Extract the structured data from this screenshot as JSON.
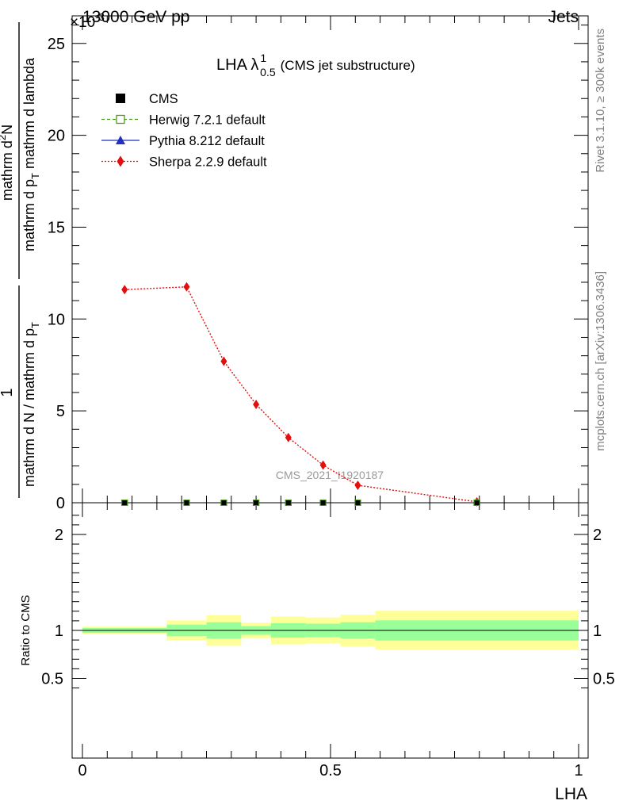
{
  "header": {
    "energy_label": "13000 GeV pp",
    "process_label": "Jets",
    "exponent_label": "×10",
    "exponent_power": "-3"
  },
  "title": {
    "main": "LHA λ",
    "sup": "1",
    "sub": "0.5",
    "paren": "(CMS jet substructure)"
  },
  "side_labels": {
    "rivet": "Rivet 3.1.10, ≥ 300k events",
    "mcplots": "mcplots.cern.ch [arXiv:1306.3436]"
  },
  "watermark": "CMS_2021_I1920187",
  "legend": [
    {
      "name": "CMS",
      "color": "#000000",
      "marker": "square",
      "line": "none"
    },
    {
      "name": "Herwig 7.2.1 default",
      "color": "#4a9a1a",
      "marker": "open-square",
      "line": "dashed"
    },
    {
      "name": "Pythia 8.212 default",
      "color": "#1f2fbf",
      "marker": "triangle",
      "line": "solid"
    },
    {
      "name": "Sherpa 2.2.9 default",
      "color": "#e30f0f",
      "marker": "diamond",
      "line": "dotted"
    }
  ],
  "axes": {
    "ylabel_main_numerator": "1",
    "ylabel_main_denominator": "mathrm d N / mathrm d p",
    "ylabel_main_denominator_sub": "T",
    "ylabel_main_right_numerator": "mathrm d",
    "ylabel_main_right_numerator_sup": "2",
    "ylabel_main_right_numerator_tail": "N",
    "ylabel_main_right_denominator": "mathrm d p",
    "ylabel_main_right_denominator_sub": "T",
    "ylabel_main_right_denominator_tail": " mathrm d lambda",
    "ylabel_ratio": "Ratio to CMS",
    "xlabel": "LHA"
  },
  "chart_data": [
    {
      "type": "line",
      "panel": "main",
      "xlim": [
        0,
        1
      ],
      "ylim": [
        0,
        26.5
      ],
      "y_scale_factor": "1e-3",
      "yticks_major": [
        0,
        5,
        10,
        15,
        20,
        25
      ],
      "xticks_major": [
        0,
        0.5,
        1
      ],
      "series": [
        {
          "name": "CMS",
          "x": [
            0.085,
            0.21,
            0.285,
            0.35,
            0.415,
            0.485,
            0.555,
            0.795
          ],
          "y": [
            0.0,
            0.0,
            0.0,
            0.0,
            0.0,
            0.0,
            0.0,
            0.0
          ]
        },
        {
          "name": "Sherpa 2.2.9 default",
          "x": [
            0.085,
            0.21,
            0.285,
            0.35,
            0.415,
            0.485,
            0.555,
            0.795
          ],
          "y": [
            11.6,
            11.75,
            7.7,
            5.35,
            3.55,
            2.05,
            0.95,
            0.05
          ]
        }
      ]
    },
    {
      "type": "area",
      "panel": "ratio",
      "xlim": [
        0,
        1
      ],
      "ylim": [
        0.3,
        2.25
      ],
      "yticks_major": [
        0.5,
        1,
        2
      ],
      "bins": [
        {
          "x0": 0.0,
          "x1": 0.17,
          "green": [
            0.975,
            1.025
          ],
          "yellow": [
            0.96,
            1.04
          ]
        },
        {
          "x0": 0.17,
          "x1": 0.25,
          "green": [
            0.94,
            1.06
          ],
          "yellow": [
            0.895,
            1.105
          ]
        },
        {
          "x0": 0.25,
          "x1": 0.32,
          "green": [
            0.915,
            1.085
          ],
          "yellow": [
            0.84,
            1.16
          ]
        },
        {
          "x0": 0.32,
          "x1": 0.38,
          "green": [
            0.955,
            1.045
          ],
          "yellow": [
            0.92,
            1.08
          ]
        },
        {
          "x0": 0.38,
          "x1": 0.45,
          "green": [
            0.925,
            1.075
          ],
          "yellow": [
            0.855,
            1.145
          ]
        },
        {
          "x0": 0.45,
          "x1": 0.52,
          "green": [
            0.93,
            1.07
          ],
          "yellow": [
            0.865,
            1.135
          ]
        },
        {
          "x0": 0.52,
          "x1": 0.59,
          "green": [
            0.915,
            1.085
          ],
          "yellow": [
            0.835,
            1.165
          ]
        },
        {
          "x0": 0.59,
          "x1": 1.0,
          "green": [
            0.895,
            1.105
          ],
          "yellow": [
            0.8,
            1.205
          ]
        }
      ]
    }
  ]
}
